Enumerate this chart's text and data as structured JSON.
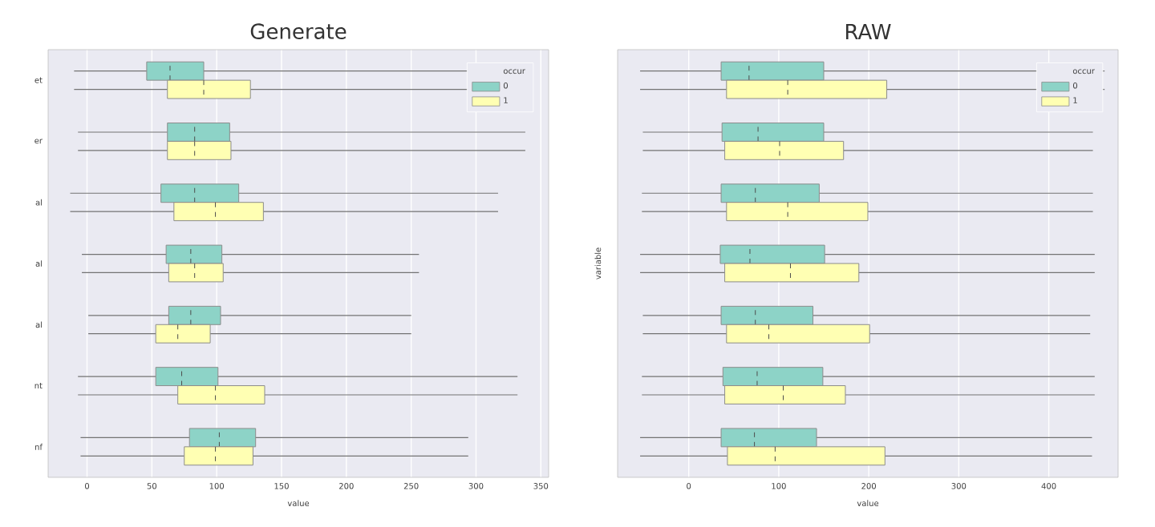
{
  "chart_data": [
    {
      "type": "box",
      "title": "Generate",
      "xlabel": "value",
      "legend_title": "occur",
      "orientation": "horizontal",
      "legend": "top right",
      "grid": "x",
      "categories": [
        "et",
        "er",
        "al",
        "al",
        "al",
        "nt",
        "nf"
      ],
      "xlim": [
        -30,
        356
      ],
      "xticks": [
        0,
        50,
        100,
        150,
        200,
        250,
        300,
        350
      ],
      "series": [
        {
          "name": "0",
          "color": "#8dd3c7",
          "boxes": [
            {
              "low": -10,
              "q1": 46,
              "median": 64,
              "q3": 90,
              "high": 325
            },
            {
              "low": -7,
              "q1": 62,
              "median": 83,
              "q3": 110,
              "high": 338
            },
            {
              "low": -13,
              "q1": 57,
              "median": 83,
              "q3": 117,
              "high": 317
            },
            {
              "low": -4,
              "q1": 61,
              "median": 80,
              "q3": 104,
              "high": 256
            },
            {
              "low": 1,
              "q1": 63,
              "median": 80,
              "q3": 103,
              "high": 250
            },
            {
              "low": -7,
              "q1": 53,
              "median": 73,
              "q3": 101,
              "high": 332
            },
            {
              "low": -5,
              "q1": 79,
              "median": 102,
              "q3": 130,
              "high": 294
            }
          ]
        },
        {
          "name": "1",
          "color": "#ffffb3",
          "boxes": [
            {
              "low": -10,
              "q1": 62,
              "median": 90,
              "q3": 126,
              "high": 325
            },
            {
              "low": -7,
              "q1": 62,
              "median": 83,
              "q3": 111,
              "high": 338
            },
            {
              "low": -13,
              "q1": 67,
              "median": 99,
              "q3": 136,
              "high": 317
            },
            {
              "low": -4,
              "q1": 63,
              "median": 83,
              "q3": 105,
              "high": 256
            },
            {
              "low": 1,
              "q1": 53,
              "median": 70,
              "q3": 95,
              "high": 250
            },
            {
              "low": -7,
              "q1": 70,
              "median": 99,
              "q3": 137,
              "high": 332
            },
            {
              "low": -5,
              "q1": 75,
              "median": 99,
              "q3": 128,
              "high": 294
            }
          ]
        }
      ]
    },
    {
      "type": "box",
      "title": "RAW",
      "xlabel": "value",
      "ylabel": "variable",
      "legend_title": "occur",
      "orientation": "horizontal",
      "legend": "top right",
      "grid": "x",
      "tick_labels": "x",
      "categories": [
        null,
        null,
        null,
        null,
        null,
        null,
        null
      ],
      "xlim": [
        -79,
        477
      ],
      "xticks": [
        0,
        100,
        200,
        300,
        400
      ],
      "series": [
        {
          "name": "0",
          "color": "#8dd3c7",
          "boxes": [
            {
              "low": -54,
              "q1": 36,
              "median": 67,
              "q3": 150,
              "high": 462
            },
            {
              "low": -51,
              "q1": 37,
              "median": 77,
              "q3": 150,
              "high": 449
            },
            {
              "low": -52,
              "q1": 36,
              "median": 74,
              "q3": 145,
              "high": 449
            },
            {
              "low": -54,
              "q1": 35,
              "median": 68,
              "q3": 151,
              "high": 451
            },
            {
              "low": -51,
              "q1": 36,
              "median": 74,
              "q3": 138,
              "high": 446
            },
            {
              "low": -52,
              "q1": 38,
              "median": 76,
              "q3": 149,
              "high": 451
            },
            {
              "low": -54,
              "q1": 36,
              "median": 73,
              "q3": 142,
              "high": 448
            }
          ]
        },
        {
          "name": "1",
          "color": "#ffffb3",
          "boxes": [
            {
              "low": -54,
              "q1": 42,
              "median": 110,
              "q3": 220,
              "high": 462
            },
            {
              "low": -51,
              "q1": 40,
              "median": 101,
              "q3": 172,
              "high": 449
            },
            {
              "low": -52,
              "q1": 42,
              "median": 110,
              "q3": 199,
              "high": 449
            },
            {
              "low": -54,
              "q1": 40,
              "median": 113,
              "q3": 189,
              "high": 451
            },
            {
              "low": -51,
              "q1": 42,
              "median": 89,
              "q3": 201,
              "high": 446
            },
            {
              "low": -52,
              "q1": 40,
              "median": 105,
              "q3": 174,
              "high": 451
            },
            {
              "low": -54,
              "q1": 43,
              "median": 96,
              "q3": 218,
              "high": 448
            }
          ]
        }
      ]
    }
  ]
}
